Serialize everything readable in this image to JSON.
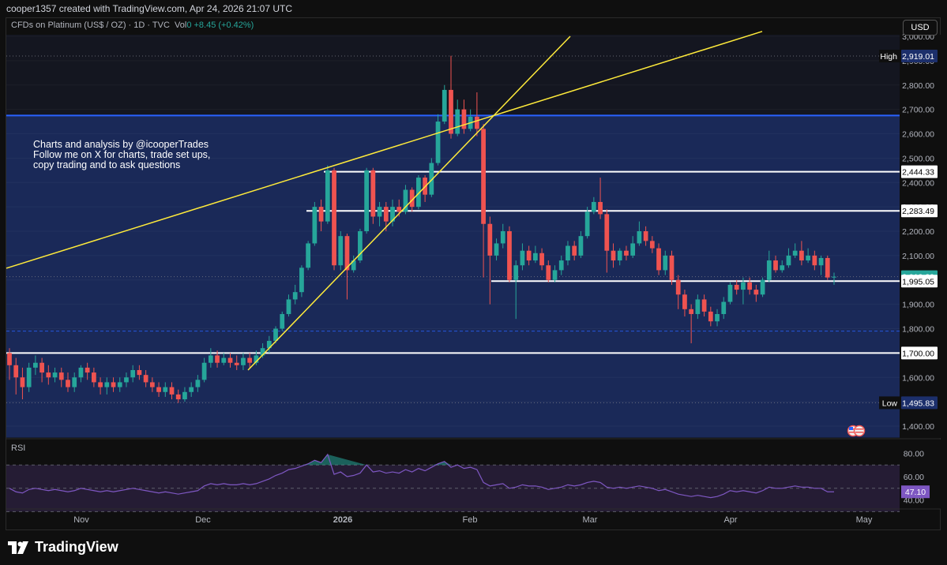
{
  "header": {
    "credit": "cooper1357 created with TradingView.com, Apr 24, 2026 21:07 UTC"
  },
  "legend": {
    "symbol": "CFDs on Platinum (US$ / OZ) · 1D · TVC",
    "vol_label": "Vol",
    "vol_value": "0",
    "change": "+8.45 (+0.42%)"
  },
  "overlay_text": "Charts and analysis by @icooperTrades\nFollow me on X for charts, trade set ups,\ncopy trading and to ask questions",
  "currency_button": "USD",
  "rsi": {
    "label": "RSI",
    "ticks": [
      "80.00",
      "60.00",
      "40.00"
    ],
    "current_value": "47.10"
  },
  "brand": "TradingView",
  "colors": {
    "up": "#26a69a",
    "down": "#ef5350",
    "zone": "#1a2a5c",
    "trendline": "#ffeb3b",
    "resistance": "#2962ff",
    "rsi_line": "#7e57c2",
    "rsi_band": "#2a1f3d"
  },
  "chart_data": {
    "type": "candlestick",
    "title": "",
    "y_axis": {
      "ticks": [
        "3,000.00",
        "2,900.00",
        "2,800.00",
        "2,700.00",
        "2,600.00",
        "2,500.00",
        "2,400.00",
        "2,300.00",
        "2,200.00",
        "2,100.00",
        "2,000.00",
        "1,900.00",
        "1,800.00",
        "1,700.00",
        "1,600.00",
        "1,500.00",
        "1,400.00"
      ],
      "range": [
        1350,
        3050
      ]
    },
    "x_axis": {
      "labels": [
        "Nov",
        "Dec",
        "2026",
        "Feb",
        "Mar",
        "Apr",
        "May"
      ]
    },
    "price_labels": [
      {
        "label": "High",
        "value": "2,919.01"
      },
      {
        "value": "2,444.33"
      },
      {
        "value": "2,283.49"
      },
      {
        "value": "2,013.29",
        "current": true
      },
      {
        "value": "1,995.05"
      },
      {
        "value": "1,700.00"
      },
      {
        "label": "Low",
        "value": "1,495.83"
      }
    ],
    "horizontal_levels": [
      2444.33,
      2283.49,
      1995.05,
      1700.0
    ],
    "resistance_level": 2675,
    "zone": {
      "top": 2675,
      "bottom": 1495.83
    },
    "dotted_levels": [
      2919.01,
      2013.29,
      1790,
      1495.83
    ],
    "candles": [
      {
        "o": 1700,
        "c": 1650,
        "h": 1720,
        "l": 1590
      },
      {
        "o": 1650,
        "c": 1600,
        "h": 1680,
        "l": 1530
      },
      {
        "o": 1600,
        "c": 1560,
        "h": 1640,
        "l": 1510
      },
      {
        "o": 1560,
        "c": 1640,
        "h": 1660,
        "l": 1540
      },
      {
        "o": 1640,
        "c": 1660,
        "h": 1690,
        "l": 1610
      },
      {
        "o": 1660,
        "c": 1620,
        "h": 1680,
        "l": 1580
      },
      {
        "o": 1620,
        "c": 1600,
        "h": 1650,
        "l": 1570
      },
      {
        "o": 1600,
        "c": 1620,
        "h": 1640,
        "l": 1580
      },
      {
        "o": 1620,
        "c": 1590,
        "h": 1640,
        "l": 1560
      },
      {
        "o": 1590,
        "c": 1560,
        "h": 1620,
        "l": 1540
      },
      {
        "o": 1560,
        "c": 1600,
        "h": 1620,
        "l": 1540
      },
      {
        "o": 1600,
        "c": 1640,
        "h": 1650,
        "l": 1580
      },
      {
        "o": 1640,
        "c": 1620,
        "h": 1660,
        "l": 1590
      },
      {
        "o": 1620,
        "c": 1580,
        "h": 1640,
        "l": 1560
      },
      {
        "o": 1580,
        "c": 1560,
        "h": 1600,
        "l": 1530
      },
      {
        "o": 1560,
        "c": 1580,
        "h": 1600,
        "l": 1530
      },
      {
        "o": 1580,
        "c": 1560,
        "h": 1600,
        "l": 1540
      },
      {
        "o": 1560,
        "c": 1580,
        "h": 1600,
        "l": 1540
      },
      {
        "o": 1580,
        "c": 1600,
        "h": 1620,
        "l": 1560
      },
      {
        "o": 1600,
        "c": 1630,
        "h": 1650,
        "l": 1580
      },
      {
        "o": 1630,
        "c": 1610,
        "h": 1650,
        "l": 1590
      },
      {
        "o": 1610,
        "c": 1580,
        "h": 1630,
        "l": 1560
      },
      {
        "o": 1580,
        "c": 1560,
        "h": 1600,
        "l": 1540
      },
      {
        "o": 1560,
        "c": 1540,
        "h": 1580,
        "l": 1520
      },
      {
        "o": 1540,
        "c": 1560,
        "h": 1580,
        "l": 1520
      },
      {
        "o": 1560,
        "c": 1530,
        "h": 1580,
        "l": 1510
      },
      {
        "o": 1530,
        "c": 1510,
        "h": 1550,
        "l": 1495
      },
      {
        "o": 1510,
        "c": 1540,
        "h": 1560,
        "l": 1500
      },
      {
        "o": 1540,
        "c": 1560,
        "h": 1580,
        "l": 1520
      },
      {
        "o": 1560,
        "c": 1590,
        "h": 1610,
        "l": 1540
      },
      {
        "o": 1590,
        "c": 1660,
        "h": 1680,
        "l": 1580
      },
      {
        "o": 1660,
        "c": 1690,
        "h": 1720,
        "l": 1640
      },
      {
        "o": 1690,
        "c": 1660,
        "h": 1710,
        "l": 1640
      },
      {
        "o": 1660,
        "c": 1680,
        "h": 1700,
        "l": 1650
      },
      {
        "o": 1680,
        "c": 1660,
        "h": 1700,
        "l": 1640
      },
      {
        "o": 1660,
        "c": 1650,
        "h": 1690,
        "l": 1630
      },
      {
        "o": 1650,
        "c": 1680,
        "h": 1700,
        "l": 1630
      },
      {
        "o": 1680,
        "c": 1660,
        "h": 1700,
        "l": 1640
      },
      {
        "o": 1660,
        "c": 1690,
        "h": 1710,
        "l": 1650
      },
      {
        "o": 1690,
        "c": 1720,
        "h": 1740,
        "l": 1680
      },
      {
        "o": 1720,
        "c": 1750,
        "h": 1770,
        "l": 1700
      },
      {
        "o": 1750,
        "c": 1800,
        "h": 1810,
        "l": 1740
      },
      {
        "o": 1800,
        "c": 1860,
        "h": 1870,
        "l": 1790
      },
      {
        "o": 1860,
        "c": 1920,
        "h": 1940,
        "l": 1850
      },
      {
        "o": 1920,
        "c": 1950,
        "h": 1980,
        "l": 1900
      },
      {
        "o": 1950,
        "c": 2050,
        "h": 2060,
        "l": 1930
      },
      {
        "o": 2050,
        "c": 2150,
        "h": 2160,
        "l": 2040
      },
      {
        "o": 2150,
        "c": 2300,
        "h": 2320,
        "l": 2140
      },
      {
        "o": 2300,
        "c": 2240,
        "h": 2330,
        "l": 2200
      },
      {
        "o": 2240,
        "c": 2450,
        "h": 2470,
        "l": 2230
      },
      {
        "o": 2450,
        "c": 2060,
        "h": 2460,
        "l": 2040
      },
      {
        "o": 2060,
        "c": 2180,
        "h": 2200,
        "l": 2040
      },
      {
        "o": 2180,
        "c": 2040,
        "h": 2190,
        "l": 1920
      },
      {
        "o": 2040,
        "c": 2080,
        "h": 2100,
        "l": 2030
      },
      {
        "o": 2080,
        "c": 2200,
        "h": 2210,
        "l": 2070
      },
      {
        "o": 2200,
        "c": 2450,
        "h": 2460,
        "l": 2190
      },
      {
        "o": 2450,
        "c": 2260,
        "h": 2460,
        "l": 2230
      },
      {
        "o": 2260,
        "c": 2300,
        "h": 2320,
        "l": 2220
      },
      {
        "o": 2300,
        "c": 2240,
        "h": 2320,
        "l": 2200
      },
      {
        "o": 2240,
        "c": 2300,
        "h": 2330,
        "l": 2220
      },
      {
        "o": 2300,
        "c": 2280,
        "h": 2330,
        "l": 2260
      },
      {
        "o": 2280,
        "c": 2370,
        "h": 2390,
        "l": 2270
      },
      {
        "o": 2370,
        "c": 2300,
        "h": 2380,
        "l": 2280
      },
      {
        "o": 2300,
        "c": 2420,
        "h": 2430,
        "l": 2290
      },
      {
        "o": 2420,
        "c": 2350,
        "h": 2430,
        "l": 2320
      },
      {
        "o": 2350,
        "c": 2480,
        "h": 2500,
        "l": 2340
      },
      {
        "o": 2480,
        "c": 2650,
        "h": 2680,
        "l": 2470
      },
      {
        "o": 2650,
        "c": 2780,
        "h": 2800,
        "l": 2640
      },
      {
        "o": 2780,
        "c": 2600,
        "h": 2920,
        "l": 2580
      },
      {
        "o": 2600,
        "c": 2700,
        "h": 2740,
        "l": 2590
      },
      {
        "o": 2700,
        "c": 2620,
        "h": 2740,
        "l": 2600
      },
      {
        "o": 2620,
        "c": 2670,
        "h": 2700,
        "l": 2610
      },
      {
        "o": 2670,
        "c": 2620,
        "h": 2770,
        "l": 2590
      },
      {
        "o": 2620,
        "c": 2230,
        "h": 2640,
        "l": 2010
      },
      {
        "o": 2230,
        "c": 2100,
        "h": 2260,
        "l": 1900
      },
      {
        "o": 2100,
        "c": 2150,
        "h": 2170,
        "l": 2080
      },
      {
        "o": 2150,
        "c": 2200,
        "h": 2230,
        "l": 2130
      },
      {
        "o": 2200,
        "c": 2000,
        "h": 2220,
        "l": 1990
      },
      {
        "o": 2000,
        "c": 2060,
        "h": 2080,
        "l": 1840
      },
      {
        "o": 2060,
        "c": 2120,
        "h": 2150,
        "l": 2040
      },
      {
        "o": 2120,
        "c": 2080,
        "h": 2140,
        "l": 2060
      },
      {
        "o": 2080,
        "c": 2110,
        "h": 2140,
        "l": 2070
      },
      {
        "o": 2110,
        "c": 2060,
        "h": 2130,
        "l": 2040
      },
      {
        "o": 2060,
        "c": 2000,
        "h": 2080,
        "l": 1990
      },
      {
        "o": 2000,
        "c": 2040,
        "h": 2060,
        "l": 1990
      },
      {
        "o": 2040,
        "c": 2080,
        "h": 2100,
        "l": 2020
      },
      {
        "o": 2080,
        "c": 2140,
        "h": 2160,
        "l": 2060
      },
      {
        "o": 2140,
        "c": 2100,
        "h": 2160,
        "l": 2080
      },
      {
        "o": 2100,
        "c": 2180,
        "h": 2200,
        "l": 2090
      },
      {
        "o": 2180,
        "c": 2280,
        "h": 2300,
        "l": 2170
      },
      {
        "o": 2280,
        "c": 2320,
        "h": 2340,
        "l": 2270
      },
      {
        "o": 2320,
        "c": 2270,
        "h": 2420,
        "l": 2250
      },
      {
        "o": 2270,
        "c": 2120,
        "h": 2290,
        "l": 2030
      },
      {
        "o": 2120,
        "c": 2080,
        "h": 2150,
        "l": 2050
      },
      {
        "o": 2080,
        "c": 2120,
        "h": 2130,
        "l": 2060
      },
      {
        "o": 2120,
        "c": 2100,
        "h": 2140,
        "l": 2080
      },
      {
        "o": 2100,
        "c": 2150,
        "h": 2180,
        "l": 2090
      },
      {
        "o": 2150,
        "c": 2200,
        "h": 2240,
        "l": 2140
      },
      {
        "o": 2200,
        "c": 2160,
        "h": 2220,
        "l": 2140
      },
      {
        "o": 2160,
        "c": 2130,
        "h": 2180,
        "l": 2110
      },
      {
        "o": 2130,
        "c": 2040,
        "h": 2150,
        "l": 2020
      },
      {
        "o": 2040,
        "c": 2100,
        "h": 2120,
        "l": 2020
      },
      {
        "o": 2100,
        "c": 2000,
        "h": 2120,
        "l": 1980
      },
      {
        "o": 2000,
        "c": 1940,
        "h": 2020,
        "l": 1880
      },
      {
        "o": 1940,
        "c": 1880,
        "h": 1960,
        "l": 1850
      },
      {
        "o": 1880,
        "c": 1860,
        "h": 1900,
        "l": 1740
      },
      {
        "o": 1860,
        "c": 1920,
        "h": 1940,
        "l": 1840
      },
      {
        "o": 1920,
        "c": 1870,
        "h": 1940,
        "l": 1850
      },
      {
        "o": 1870,
        "c": 1830,
        "h": 1890,
        "l": 1810
      },
      {
        "o": 1830,
        "c": 1860,
        "h": 1880,
        "l": 1810
      },
      {
        "o": 1860,
        "c": 1910,
        "h": 1930,
        "l": 1840
      },
      {
        "o": 1910,
        "c": 1980,
        "h": 1990,
        "l": 1900
      },
      {
        "o": 1980,
        "c": 1960,
        "h": 2000,
        "l": 1940
      },
      {
        "o": 1960,
        "c": 1990,
        "h": 2010,
        "l": 1900
      },
      {
        "o": 1990,
        "c": 1960,
        "h": 2010,
        "l": 1940
      },
      {
        "o": 1960,
        "c": 1940,
        "h": 1980,
        "l": 1910
      },
      {
        "o": 1940,
        "c": 2000,
        "h": 2010,
        "l": 1930
      },
      {
        "o": 2000,
        "c": 2080,
        "h": 2120,
        "l": 1990
      },
      {
        "o": 2080,
        "c": 2040,
        "h": 2100,
        "l": 2030
      },
      {
        "o": 2040,
        "c": 2060,
        "h": 2080,
        "l": 2030
      },
      {
        "o": 2060,
        "c": 2100,
        "h": 2130,
        "l": 2050
      },
      {
        "o": 2100,
        "c": 2120,
        "h": 2150,
        "l": 2090
      },
      {
        "o": 2120,
        "c": 2080,
        "h": 2160,
        "l": 2060
      },
      {
        "o": 2080,
        "c": 2100,
        "h": 2130,
        "l": 2070
      },
      {
        "o": 2100,
        "c": 2060,
        "h": 2120,
        "l": 2040
      },
      {
        "o": 2060,
        "c": 2090,
        "h": 2100,
        "l": 2020
      },
      {
        "o": 2090,
        "c": 2010,
        "h": 2100,
        "l": 2000
      },
      {
        "o": 2010,
        "c": 2013.29,
        "h": 2030,
        "l": 1980
      }
    ],
    "rsi_values": [
      50,
      47,
      46,
      49,
      50,
      49,
      48,
      49,
      48,
      47,
      48,
      50,
      49,
      48,
      47,
      48,
      47,
      48,
      49,
      50,
      49,
      48,
      47,
      46,
      47,
      46,
      45,
      46,
      47,
      48,
      52,
      54,
      53,
      54,
      53,
      53,
      54,
      53,
      54,
      56,
      58,
      61,
      63,
      66,
      67,
      69,
      71,
      74,
      72,
      79,
      62,
      64,
      60,
      61,
      63,
      70,
      64,
      65,
      63,
      64,
      63,
      66,
      64,
      67,
      65,
      68,
      71,
      73,
      68,
      70,
      67,
      68,
      66,
      55,
      52,
      53,
      54,
      50,
      51,
      53,
      52,
      52,
      51,
      49,
      50,
      51,
      53,
      52,
      53,
      55,
      56,
      55,
      51,
      50,
      51,
      50,
      51,
      52,
      51,
      50,
      48,
      49,
      47,
      45,
      44,
      43,
      44,
      43,
      42,
      43,
      45,
      48,
      47,
      48,
      47,
      46,
      48,
      51,
      50,
      50,
      51,
      52,
      51,
      51,
      50,
      50,
      47,
      47
    ]
  }
}
